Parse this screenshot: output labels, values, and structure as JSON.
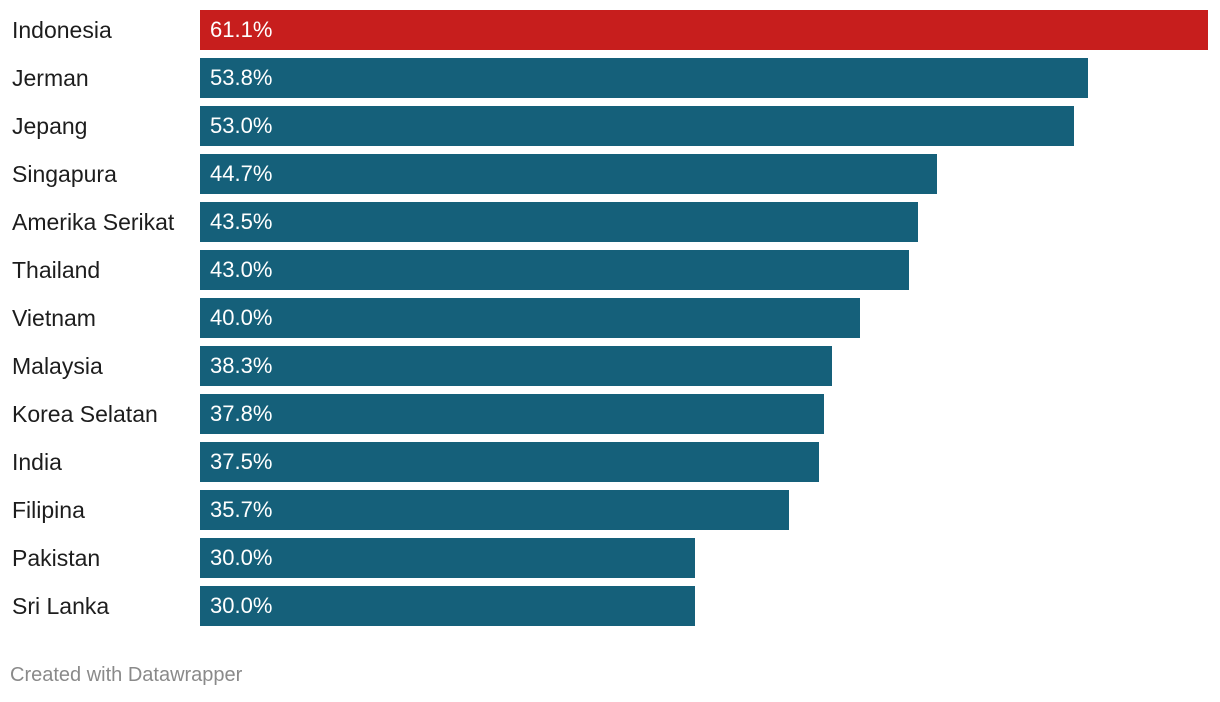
{
  "chart_data": {
    "type": "bar",
    "orientation": "horizontal",
    "title": "",
    "xlabel": "",
    "ylabel": "",
    "xlim": [
      0,
      61.1
    ],
    "grid": false,
    "value_suffix": "%",
    "categories": [
      "Indonesia",
      "Jerman",
      "Jepang",
      "Singapura",
      "Amerika Serikat",
      "Thailand",
      "Vietnam",
      "Malaysia",
      "Korea Selatan",
      "India",
      "Filipina",
      "Pakistan",
      "Sri Lanka"
    ],
    "values": [
      61.1,
      53.8,
      53.0,
      44.7,
      43.5,
      43.0,
      40.0,
      38.3,
      37.8,
      37.5,
      35.7,
      30.0,
      30.0
    ],
    "value_labels": [
      "61.1%",
      "53.8%",
      "53.0%",
      "44.7%",
      "43.5%",
      "43.0%",
      "40.0%",
      "38.3%",
      "37.8%",
      "37.5%",
      "35.7%",
      "30.0%",
      "30.0%"
    ],
    "highlight_category": "Indonesia",
    "colors": {
      "highlight": "#c71e1d",
      "default": "#15607a"
    }
  },
  "footer": {
    "credit": "Created with Datawrapper"
  }
}
